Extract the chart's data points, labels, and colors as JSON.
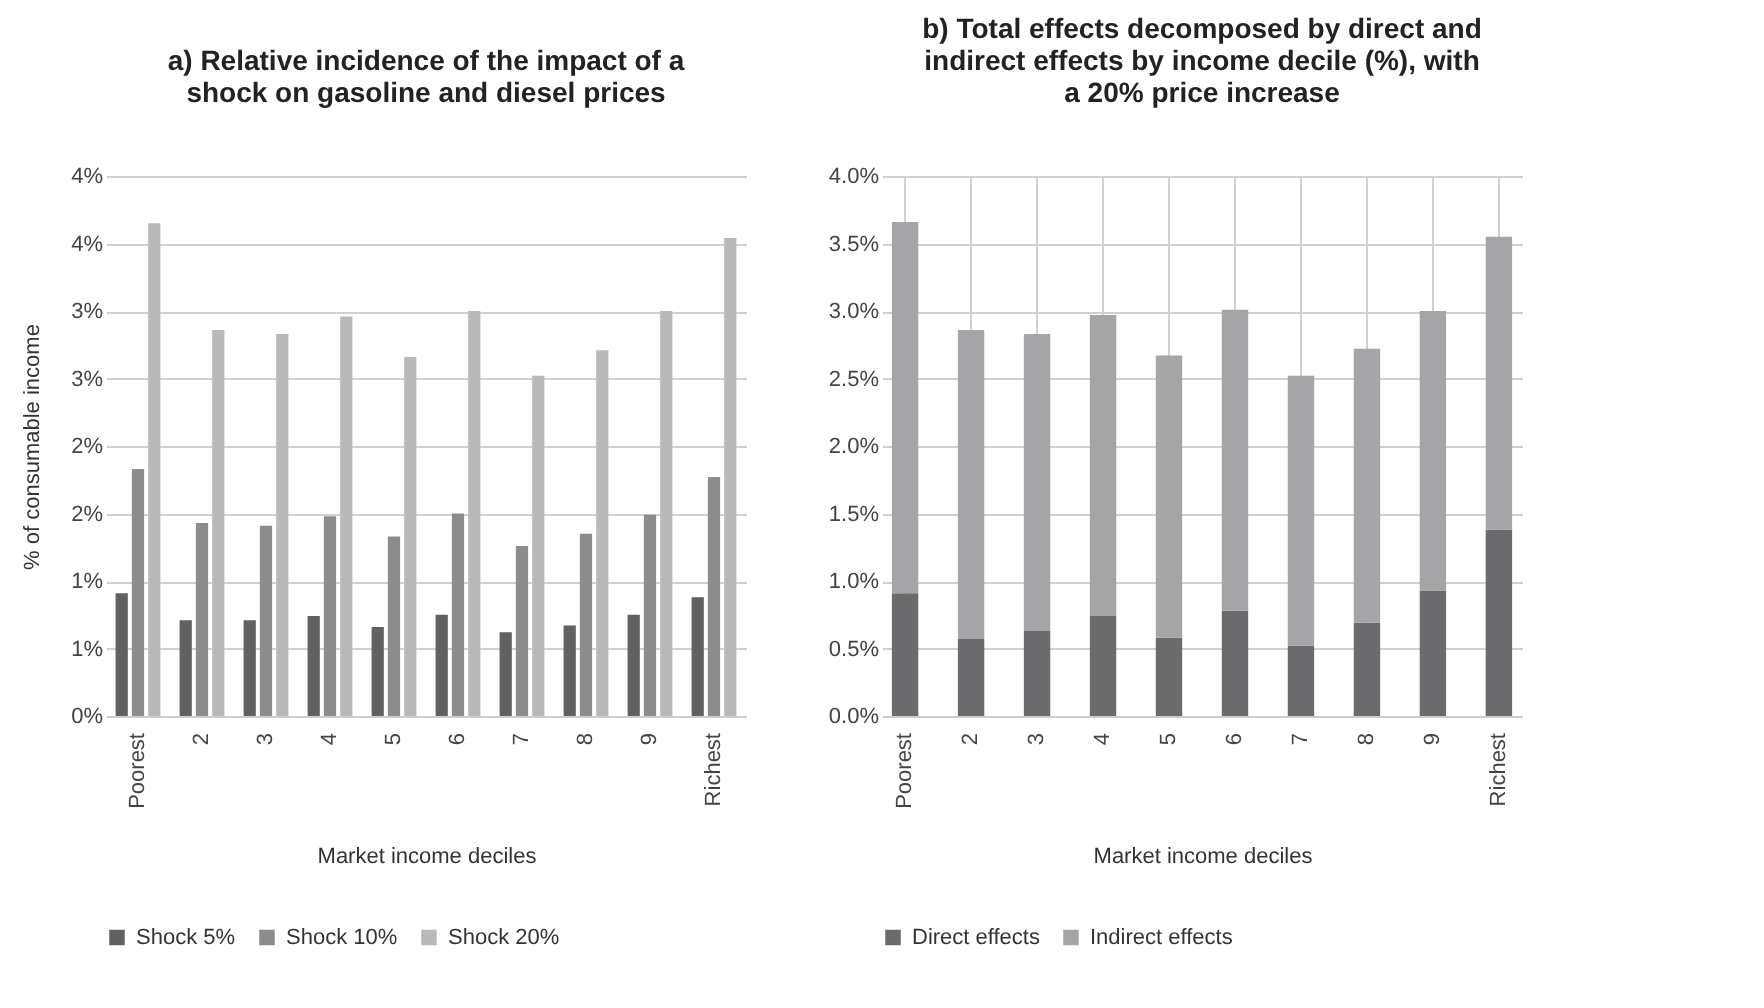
{
  "chart_data": [
    {
      "type": "bar",
      "title": "a) Relative incidence of the impact of a shock on gasoline and diesel prices",
      "xlabel": "Market income deciles",
      "ylabel": "% of consumable income",
      "categories": [
        "Poorest",
        "2",
        "3",
        "4",
        "5",
        "6",
        "7",
        "8",
        "9",
        "Richest"
      ],
      "series": [
        {
          "name": "Shock 5%",
          "color": "#616161",
          "values": [
            0.91,
            0.71,
            0.71,
            0.74,
            0.66,
            0.75,
            0.62,
            0.67,
            0.75,
            0.88
          ]
        },
        {
          "name": "Shock 10%",
          "color": "#8c8c8c",
          "values": [
            1.83,
            1.43,
            1.41,
            1.48,
            1.33,
            1.5,
            1.26,
            1.35,
            1.49,
            1.77
          ]
        },
        {
          "name": "Shock 20%",
          "color": "#b9b9b9",
          "values": [
            3.65,
            2.86,
            2.83,
            2.96,
            2.66,
            3.0,
            2.52,
            2.71,
            3.0,
            3.54
          ]
        }
      ],
      "ylim": [
        0,
        4
      ],
      "yticks": [
        {
          "value": 0,
          "label": "0%"
        },
        {
          "value": 0.5,
          "label": "1%"
        },
        {
          "value": 1,
          "label": "1%"
        },
        {
          "value": 1.5,
          "label": "2%"
        },
        {
          "value": 2,
          "label": "2%"
        },
        {
          "value": 2.5,
          "label": "3%"
        },
        {
          "value": 3,
          "label": "3%"
        },
        {
          "value": 3.5,
          "label": "4%"
        },
        {
          "value": 4,
          "label": "4%"
        }
      ],
      "grid": "y",
      "legend": "bottom"
    },
    {
      "type": "bar",
      "title": "b) Total effects decomposed by direct and indirect effects by income decile (%), with a 20% price increase",
      "xlabel": "Market income deciles",
      "categories": [
        "Poorest",
        "2",
        "3",
        "4",
        "5",
        "6",
        "7",
        "8",
        "9",
        "Richest"
      ],
      "stacked": true,
      "series": [
        {
          "name": "Direct effects",
          "color": "#6b6b6d",
          "values": [
            0.91,
            0.57,
            0.63,
            0.74,
            0.58,
            0.78,
            0.52,
            0.69,
            0.93,
            1.38
          ]
        },
        {
          "name": "Indirect effects",
          "color": "#a5a5a7",
          "values": [
            2.75,
            2.29,
            2.2,
            2.23,
            2.09,
            2.23,
            2.0,
            2.03,
            2.07,
            2.17
          ]
        }
      ],
      "ylim": [
        0,
        4
      ],
      "yticks": [
        {
          "value": 0,
          "label": "0.0%"
        },
        {
          "value": 0.5,
          "label": "0.5%"
        },
        {
          "value": 1,
          "label": "1.0%"
        },
        {
          "value": 1.5,
          "label": "1.5%"
        },
        {
          "value": 2,
          "label": "2.0%"
        },
        {
          "value": 2.5,
          "label": "2.5%"
        },
        {
          "value": 3,
          "label": "3.0%"
        },
        {
          "value": 3.5,
          "label": "3.5%"
        },
        {
          "value": 4,
          "label": "4.0%"
        }
      ],
      "grid": true,
      "legend": "bottom"
    }
  ]
}
